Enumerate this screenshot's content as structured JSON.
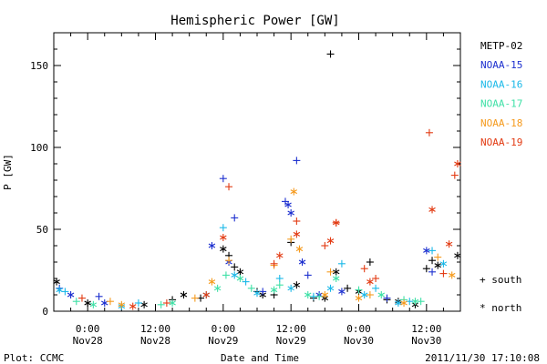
{
  "chart_data": {
    "type": "scatter",
    "title": "Hemispheric Power [GW]",
    "xlabel": "Date and Time",
    "ylabel": "P [GW]",
    "ylim": [
      0,
      170
    ],
    "xlim": [
      "2011-11-27 18:00",
      "2011-11-30 18:00"
    ],
    "y_ticks": [
      0,
      50,
      100,
      150
    ],
    "x_ticks": [
      {
        "time": "2011-11-28 00:00",
        "line1": "0:00",
        "line2": "Nov28"
      },
      {
        "time": "2011-11-28 12:00",
        "line1": "12:00",
        "line2": "Nov28"
      },
      {
        "time": "2011-11-29 00:00",
        "line1": "0:00",
        "line2": "Nov29"
      },
      {
        "time": "2011-11-29 12:00",
        "line1": "12:00",
        "line2": "Nov29"
      },
      {
        "time": "2011-11-30 00:00",
        "line1": "0:00",
        "line2": "Nov30"
      },
      {
        "time": "2011-11-30 12:00",
        "line1": "12:00",
        "line2": "Nov30"
      }
    ],
    "marker_legend": [
      {
        "symbol": "+",
        "label": "south"
      },
      {
        "symbol": "*",
        "label": "north"
      }
    ],
    "legend_position": "right",
    "footer_left": "Plot: CCMC",
    "footer_right": "2011/11/30 17:10:08",
    "series": [
      {
        "name": "METP-02",
        "color": "#000000",
        "south": [
          [
            "2011-11-28 15:00",
            7
          ],
          [
            "2011-11-28 20:00",
            8
          ],
          [
            "2011-11-29 01:00",
            34
          ],
          [
            "2011-11-29 02:00",
            27
          ],
          [
            "2011-11-29 06:00",
            12
          ],
          [
            "2011-11-29 09:00",
            10
          ],
          [
            "2011-11-29 12:00",
            42
          ],
          [
            "2011-11-29 16:00",
            8
          ],
          [
            "2011-11-29 19:00",
            157
          ],
          [
            "2011-11-29 22:00",
            14
          ],
          [
            "2011-11-30 02:00",
            30
          ],
          [
            "2011-11-30 05:00",
            7
          ],
          [
            "2011-11-30 12:00",
            26
          ],
          [
            "2011-11-30 13:00",
            31
          ]
        ],
        "north": [
          [
            "2011-11-27 18:30",
            18
          ],
          [
            "2011-11-28 00:00",
            5
          ],
          [
            "2011-11-28 10:00",
            4
          ],
          [
            "2011-11-28 17:00",
            10
          ],
          [
            "2011-11-29 00:00",
            38
          ],
          [
            "2011-11-29 03:00",
            24
          ],
          [
            "2011-11-29 07:00",
            10
          ],
          [
            "2011-11-29 13:00",
            16
          ],
          [
            "2011-11-29 18:00",
            8
          ],
          [
            "2011-11-29 20:00",
            24
          ],
          [
            "2011-11-30 00:00",
            12
          ],
          [
            "2011-11-30 07:00",
            6
          ],
          [
            "2011-11-30 10:00",
            4
          ],
          [
            "2011-11-30 14:00",
            28
          ],
          [
            "2011-11-30 17:30",
            34
          ]
        ]
      },
      {
        "name": "NOAA-15",
        "color": "#1c2fcf",
        "south": [
          [
            "2011-11-27 19:00",
            14
          ],
          [
            "2011-11-28 02:00",
            9
          ],
          [
            "2011-11-29 00:00",
            81
          ],
          [
            "2011-11-29 02:00",
            57
          ],
          [
            "2011-11-29 07:00",
            12
          ],
          [
            "2011-11-29 11:00",
            67
          ],
          [
            "2011-11-29 13:00",
            92
          ],
          [
            "2011-11-29 15:00",
            22
          ],
          [
            "2011-11-30 05:00",
            8
          ],
          [
            "2011-11-30 13:00",
            24
          ]
        ],
        "north": [
          [
            "2011-11-27 21:00",
            10
          ],
          [
            "2011-11-28 03:00",
            5
          ],
          [
            "2011-11-28 22:00",
            40
          ],
          [
            "2011-11-29 01:00",
            30
          ],
          [
            "2011-11-29 11:30",
            65
          ],
          [
            "2011-11-29 12:00",
            60
          ],
          [
            "2011-11-29 14:00",
            30
          ],
          [
            "2011-11-29 17:00",
            10
          ],
          [
            "2011-11-29 21:00",
            12
          ],
          [
            "2011-11-30 12:00",
            37
          ]
        ]
      },
      {
        "name": "NOAA-16",
        "color": "#19b8e8",
        "south": [
          [
            "2011-11-27 20:00",
            12
          ],
          [
            "2011-11-28 09:00",
            5
          ],
          [
            "2011-11-29 00:00",
            51
          ],
          [
            "2011-11-29 04:00",
            18
          ],
          [
            "2011-11-29 10:00",
            20
          ],
          [
            "2011-11-29 16:00",
            9
          ],
          [
            "2011-11-29 21:00",
            29
          ],
          [
            "2011-11-30 03:00",
            14
          ],
          [
            "2011-11-30 09:00",
            6
          ],
          [
            "2011-11-30 13:00",
            37
          ]
        ],
        "north": [
          [
            "2011-11-27 19:00",
            13
          ],
          [
            "2011-11-28 06:00",
            3
          ],
          [
            "2011-11-28 21:00",
            10
          ],
          [
            "2011-11-29 02:00",
            22
          ],
          [
            "2011-11-29 06:00",
            11
          ],
          [
            "2011-11-29 12:00",
            14
          ],
          [
            "2011-11-29 19:00",
            14
          ],
          [
            "2011-11-30 01:00",
            10
          ],
          [
            "2011-11-30 07:00",
            5
          ],
          [
            "2011-11-30 15:00",
            29
          ]
        ]
      },
      {
        "name": "NOAA-17",
        "color": "#3ee0a6",
        "south": [
          [
            "2011-11-27 22:00",
            6
          ],
          [
            "2011-11-28 13:00",
            4
          ],
          [
            "2011-11-29 00:30",
            22
          ],
          [
            "2011-11-29 05:00",
            14
          ],
          [
            "2011-11-29 10:00",
            16
          ],
          [
            "2011-11-29 17:00",
            9
          ],
          [
            "2011-11-30 00:00",
            13
          ],
          [
            "2011-11-30 08:00",
            7
          ],
          [
            "2011-11-30 11:00",
            6
          ]
        ],
        "north": [
          [
            "2011-11-28 01:00",
            4
          ],
          [
            "2011-11-28 15:00",
            5
          ],
          [
            "2011-11-28 23:00",
            14
          ],
          [
            "2011-11-29 03:00",
            20
          ],
          [
            "2011-11-29 09:00",
            13
          ],
          [
            "2011-11-29 15:00",
            10
          ],
          [
            "2011-11-29 20:00",
            20
          ],
          [
            "2011-11-30 04:00",
            10
          ],
          [
            "2011-11-30 10:00",
            6
          ]
        ]
      },
      {
        "name": "NOAA-18",
        "color": "#f59a1d",
        "south": [
          [
            "2011-11-28 04:00",
            6
          ],
          [
            "2011-11-28 19:00",
            8
          ],
          [
            "2011-11-29 01:00",
            31
          ],
          [
            "2011-11-29 09:00",
            28
          ],
          [
            "2011-11-29 12:00",
            44
          ],
          [
            "2011-11-29 19:00",
            24
          ],
          [
            "2011-11-30 02:00",
            10
          ],
          [
            "2011-11-30 14:00",
            33
          ]
        ],
        "north": [
          [
            "2011-11-28 06:00",
            4
          ],
          [
            "2011-11-28 22:00",
            18
          ],
          [
            "2011-11-29 12:30",
            73
          ],
          [
            "2011-11-29 13:30",
            38
          ],
          [
            "2011-11-29 18:00",
            10
          ],
          [
            "2011-11-30 00:00",
            8
          ],
          [
            "2011-11-30 08:00",
            5
          ],
          [
            "2011-11-30 16:30",
            22
          ]
        ]
      },
      {
        "name": "NOAA-19",
        "color": "#e23a12",
        "south": [
          [
            "2011-11-27 23:00",
            8
          ],
          [
            "2011-11-28 14:00",
            5
          ],
          [
            "2011-11-29 01:00",
            76
          ],
          [
            "2011-11-29 09:00",
            29
          ],
          [
            "2011-11-29 13:00",
            55
          ],
          [
            "2011-11-29 18:00",
            40
          ],
          [
            "2011-11-29 20:00",
            54
          ],
          [
            "2011-11-30 01:00",
            26
          ],
          [
            "2011-11-30 03:00",
            20
          ],
          [
            "2011-11-30 12:30",
            109
          ],
          [
            "2011-11-30 15:00",
            23
          ],
          [
            "2011-11-30 17:00",
            83
          ]
        ],
        "north": [
          [
            "2011-11-28 08:00",
            3
          ],
          [
            "2011-11-28 21:00",
            10
          ],
          [
            "2011-11-29 00:00",
            45
          ],
          [
            "2011-11-29 10:00",
            34
          ],
          [
            "2011-11-29 13:00",
            47
          ],
          [
            "2011-11-29 19:00",
            43
          ],
          [
            "2011-11-29 20:00",
            54
          ],
          [
            "2011-11-30 02:00",
            18
          ],
          [
            "2011-11-30 13:00",
            62
          ],
          [
            "2011-11-30 16:00",
            41
          ],
          [
            "2011-11-30 17:30",
            90
          ]
        ]
      }
    ]
  }
}
